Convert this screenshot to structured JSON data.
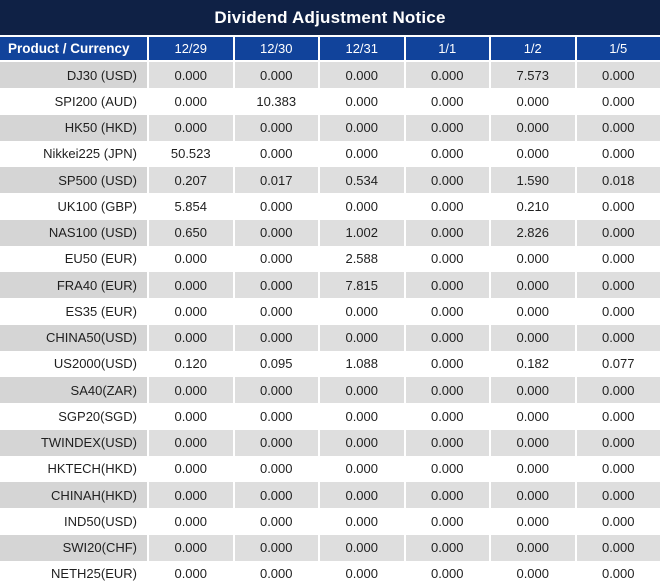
{
  "title": "Dividend Adjustment Notice",
  "colors": {
    "title_bg": "#0f2145",
    "header_bg": "#11439b",
    "header_text": "#ffffff",
    "row_alt_label_bg": "#d5d5d5",
    "row_alt_value_bg": "#dedede",
    "value_text": "#1f1f1f",
    "highlight_red": "#ee0000"
  },
  "table": {
    "header": {
      "product_col": "Product / Currency",
      "dates": [
        "12/29",
        "12/30",
        "12/31",
        "1/1",
        "1/2",
        "1/5"
      ]
    },
    "rows": [
      {
        "product": "DJ30 (USD)",
        "values": [
          "0.000",
          "0.000",
          "0.000",
          "0.000",
          "7.573",
          "0.000"
        ],
        "red": [
          4
        ]
      },
      {
        "product": "SPI200 (AUD)",
        "values": [
          "0.000",
          "10.383",
          "0.000",
          "0.000",
          "0.000",
          "0.000"
        ],
        "red": [
          1
        ]
      },
      {
        "product": "HK50 (HKD)",
        "values": [
          "0.000",
          "0.000",
          "0.000",
          "0.000",
          "0.000",
          "0.000"
        ],
        "red": []
      },
      {
        "product": "Nikkei225 (JPN)",
        "values": [
          "50.523",
          "0.000",
          "0.000",
          "0.000",
          "0.000",
          "0.000"
        ],
        "red": [
          0
        ]
      },
      {
        "product": "SP500 (USD)",
        "values": [
          "0.207",
          "0.017",
          "0.534",
          "0.000",
          "1.590",
          "0.018"
        ],
        "red": [
          0,
          1,
          2,
          4,
          5
        ]
      },
      {
        "product": "UK100 (GBP)",
        "values": [
          "5.854",
          "0.000",
          "0.000",
          "0.000",
          "0.210",
          "0.000"
        ],
        "red": [
          0,
          4
        ]
      },
      {
        "product": "NAS100 (USD)",
        "values": [
          "0.650",
          "0.000",
          "1.002",
          "0.000",
          "2.826",
          "0.000"
        ],
        "red": [
          0,
          2,
          4
        ]
      },
      {
        "product": "EU50 (EUR)",
        "values": [
          "0.000",
          "0.000",
          "2.588",
          "0.000",
          "0.000",
          "0.000"
        ],
        "red": [
          2
        ]
      },
      {
        "product": "FRA40 (EUR)",
        "values": [
          "0.000",
          "0.000",
          "7.815",
          "0.000",
          "0.000",
          "0.000"
        ],
        "red": [
          2
        ]
      },
      {
        "product": "ES35 (EUR)",
        "values": [
          "0.000",
          "0.000",
          "0.000",
          "0.000",
          "0.000",
          "0.000"
        ],
        "red": []
      },
      {
        "product": "CHINA50(USD)",
        "values": [
          "0.000",
          "0.000",
          "0.000",
          "0.000",
          "0.000",
          "0.000"
        ],
        "red": []
      },
      {
        "product": "US2000(USD)",
        "values": [
          "0.120",
          "0.095",
          "1.088",
          "0.000",
          "0.182",
          "0.077"
        ],
        "red": [
          0,
          1,
          2,
          4,
          5
        ]
      },
      {
        "product": "SA40(ZAR)",
        "values": [
          "0.000",
          "0.000",
          "0.000",
          "0.000",
          "0.000",
          "0.000"
        ],
        "red": []
      },
      {
        "product": "SGP20(SGD)",
        "values": [
          "0.000",
          "0.000",
          "0.000",
          "0.000",
          "0.000",
          "0.000"
        ],
        "red": []
      },
      {
        "product": "TWINDEX(USD)",
        "values": [
          "0.000",
          "0.000",
          "0.000",
          "0.000",
          "0.000",
          "0.000"
        ],
        "red": []
      },
      {
        "product": "HKTECH(HKD)",
        "values": [
          "0.000",
          "0.000",
          "0.000",
          "0.000",
          "0.000",
          "0.000"
        ],
        "red": []
      },
      {
        "product": "CHINAH(HKD)",
        "values": [
          "0.000",
          "0.000",
          "0.000",
          "0.000",
          "0.000",
          "0.000"
        ],
        "red": []
      },
      {
        "product": "IND50(USD)",
        "values": [
          "0.000",
          "0.000",
          "0.000",
          "0.000",
          "0.000",
          "0.000"
        ],
        "red": []
      },
      {
        "product": "SWI20(CHF)",
        "values": [
          "0.000",
          "0.000",
          "0.000",
          "0.000",
          "0.000",
          "0.000"
        ],
        "red": []
      },
      {
        "product": "NETH25(EUR)",
        "values": [
          "0.000",
          "0.000",
          "0.000",
          "0.000",
          "0.000",
          "0.000"
        ],
        "red": []
      }
    ]
  }
}
